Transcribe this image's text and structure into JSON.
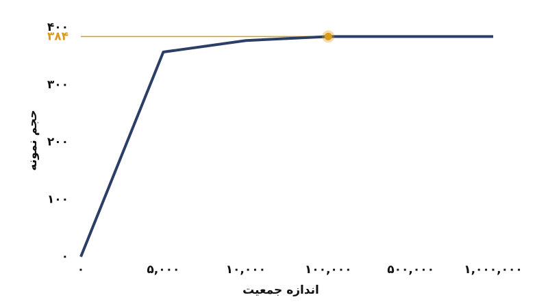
{
  "chart_data": {
    "type": "line",
    "x_label": "اندازه جمعیت",
    "y_label": "حجم نمونه",
    "categories": [
      "۰",
      "۵,۰۰۰",
      "۱۰,۰۰۰",
      "۱۰۰,۰۰۰",
      "۵۰۰,۰۰۰",
      "۱,۰۰۰,۰۰۰"
    ],
    "values": [
      0,
      357,
      377,
      384,
      384,
      384
    ],
    "color": "#2b3f66",
    "ylim": [
      0,
      400
    ],
    "yticks": [
      {
        "value": 0,
        "label": "۰"
      },
      {
        "value": 100,
        "label": "۱۰۰"
      },
      {
        "value": 200,
        "label": "۲۰۰"
      },
      {
        "value": 300,
        "label": "۳۰۰"
      },
      {
        "value": 400,
        "label": "۴۰۰"
      }
    ],
    "highlight": {
      "value": 384,
      "label": "۳۸۴",
      "color": "#d99a1e"
    }
  }
}
